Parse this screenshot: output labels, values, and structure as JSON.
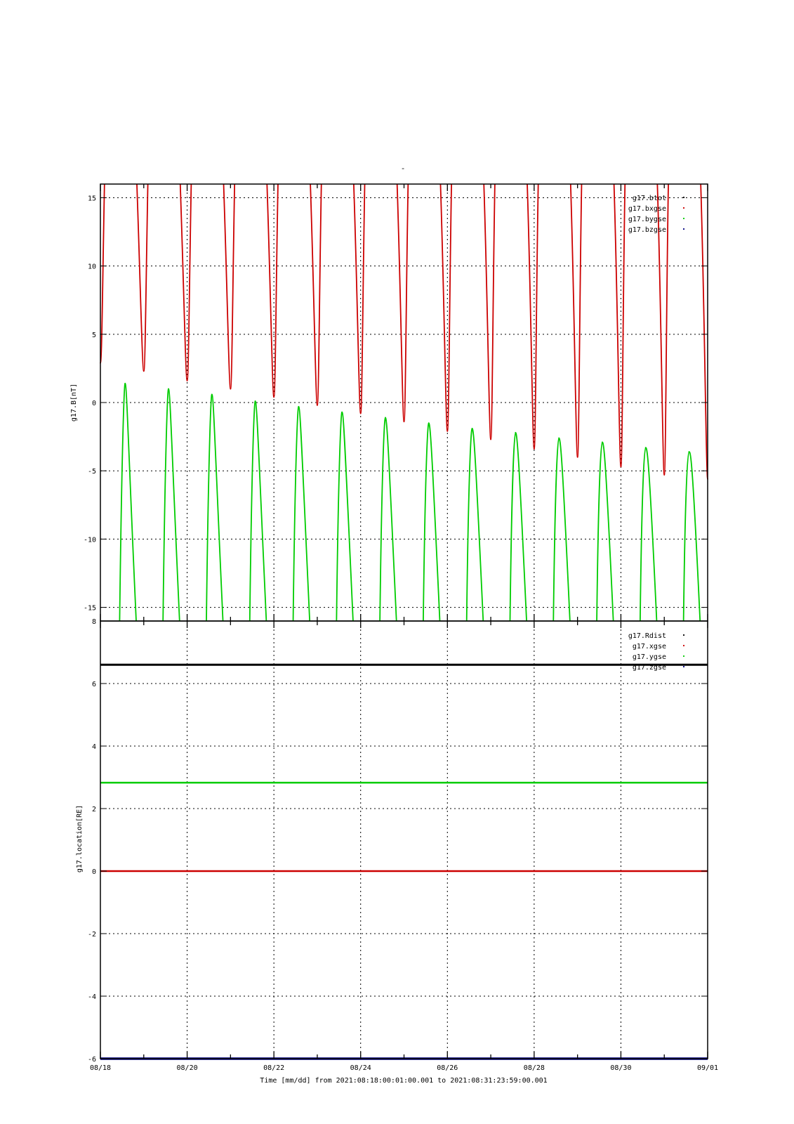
{
  "figure": {
    "title": "-",
    "x_axis_label": "Time [mm/dd]  from 2021:08:18:00:01:00.001  to  2021:08:31:23:59:00.001",
    "x_tick_labels": [
      "08/18",
      "08/20",
      "08/22",
      "08/24",
      "08/26",
      "08/28",
      "08/30",
      "09/01"
    ]
  },
  "chart_data": [
    {
      "type": "line",
      "name": "magnetic-field-panel",
      "ylabel": "g17.B[nT]",
      "xlim": [
        "2021-08-18",
        "2021-09-01"
      ],
      "ylim": [
        -16,
        16
      ],
      "yticks": [
        15,
        10,
        5,
        0,
        -5,
        -10,
        -15
      ],
      "x_ticks": [
        "08/18",
        "08/20",
        "08/22",
        "08/24",
        "08/26",
        "08/28",
        "08/30",
        "09/01"
      ],
      "grid": true,
      "legend_position": "top-right",
      "x_units": "days since 2021-08-18 00:00 UT",
      "series": [
        {
          "name": "g17.btot",
          "color": "#000000",
          "note": "off scale (above 16 nT)",
          "points": []
        },
        {
          "name": "g17.bxgse",
          "color": "#cc0000",
          "shape": "daily minima with off-scale maxima",
          "minima": [
            {
              "x": 0.0,
              "y": 2.9
            },
            {
              "x": 1.0,
              "y": 2.3
            },
            {
              "x": 2.0,
              "y": 1.6
            },
            {
              "x": 3.0,
              "y": 1.0
            },
            {
              "x": 4.0,
              "y": 0.4
            },
            {
              "x": 5.0,
              "y": -0.2
            },
            {
              "x": 6.0,
              "y": -0.8
            },
            {
              "x": 7.0,
              "y": -1.4
            },
            {
              "x": 8.0,
              "y": -2.1
            },
            {
              "x": 9.0,
              "y": -2.7
            },
            {
              "x": 10.0,
              "y": -3.4
            },
            {
              "x": 11.0,
              "y": -4.0
            },
            {
              "x": 12.0,
              "y": -4.7
            },
            {
              "x": 13.0,
              "y": -5.3
            },
            {
              "x": 14.0,
              "y": -5.6
            }
          ]
        },
        {
          "name": "g17.bygse",
          "color": "#00cc00",
          "shape": "daily maxima with off-scale minima",
          "maxima": [
            {
              "x": 0.57,
              "y": 1.4
            },
            {
              "x": 1.57,
              "y": 1.0
            },
            {
              "x": 2.57,
              "y": 0.6
            },
            {
              "x": 3.57,
              "y": 0.1
            },
            {
              "x": 4.57,
              "y": -0.3
            },
            {
              "x": 5.57,
              "y": -0.7
            },
            {
              "x": 6.57,
              "y": -1.1
            },
            {
              "x": 7.57,
              "y": -1.5
            },
            {
              "x": 8.57,
              "y": -1.9
            },
            {
              "x": 9.57,
              "y": -2.2
            },
            {
              "x": 10.57,
              "y": -2.6
            },
            {
              "x": 11.57,
              "y": -2.9
            },
            {
              "x": 12.57,
              "y": -3.3
            },
            {
              "x": 13.57,
              "y": -3.6
            }
          ]
        },
        {
          "name": "g17.bzgse",
          "color": "#000080",
          "note": "off scale",
          "points": []
        }
      ]
    },
    {
      "type": "line",
      "name": "location-panel",
      "ylabel": "g17.location[RE]",
      "xlim": [
        "2021-08-18",
        "2021-09-01"
      ],
      "ylim": [
        -6,
        8
      ],
      "yticks": [
        8,
        6,
        4,
        2,
        0,
        -2,
        -4,
        -6
      ],
      "x_ticks": [
        "08/18",
        "08/20",
        "08/22",
        "08/24",
        "08/26",
        "08/28",
        "08/30",
        "09/01"
      ],
      "grid": true,
      "legend_position": "top-right",
      "series": [
        {
          "name": "g17.Rdist",
          "color": "#000000",
          "values_constant": 6.6
        },
        {
          "name": "g17.xgse",
          "color": "#cc0000",
          "values_constant": 0.0
        },
        {
          "name": "g17.ygse",
          "color": "#00cc00",
          "values_constant": 2.83
        },
        {
          "name": "g17.zgse",
          "color": "#000080",
          "values_constant": -6.0
        }
      ]
    }
  ]
}
